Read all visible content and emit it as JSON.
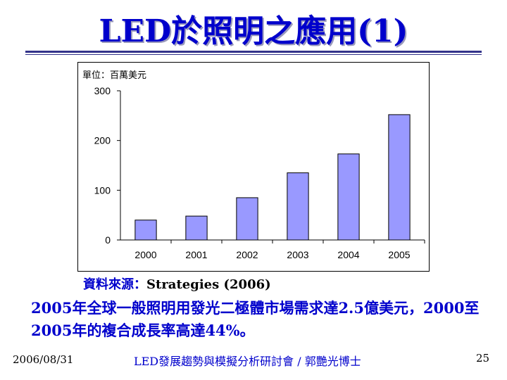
{
  "slide": {
    "title": "LED於照明之應用(1)",
    "source_label": "資料來源：",
    "source_value": "Strategies (2006)",
    "body_text": "2005年全球一般照明用發光二極體市場需求達2.5億美元，2000至2005年的複合成長率高達44%。",
    "footer_date": "2006/08/31",
    "footer_center": "LED發展趨勢與模擬分析研討會 / 郭艷光博士",
    "page_number": "25"
  },
  "chart_data": {
    "type": "bar",
    "title": "",
    "unit_label": "單位：百萬美元",
    "categories": [
      "2000",
      "2001",
      "2002",
      "2003",
      "2004",
      "2005"
    ],
    "values": [
      40,
      48,
      85,
      135,
      173,
      252
    ],
    "ylim": [
      0,
      300
    ],
    "yticks": [
      0,
      100,
      200,
      300
    ],
    "grid": false,
    "bar_color": "#9999ff",
    "bar_edge": "#000000"
  }
}
